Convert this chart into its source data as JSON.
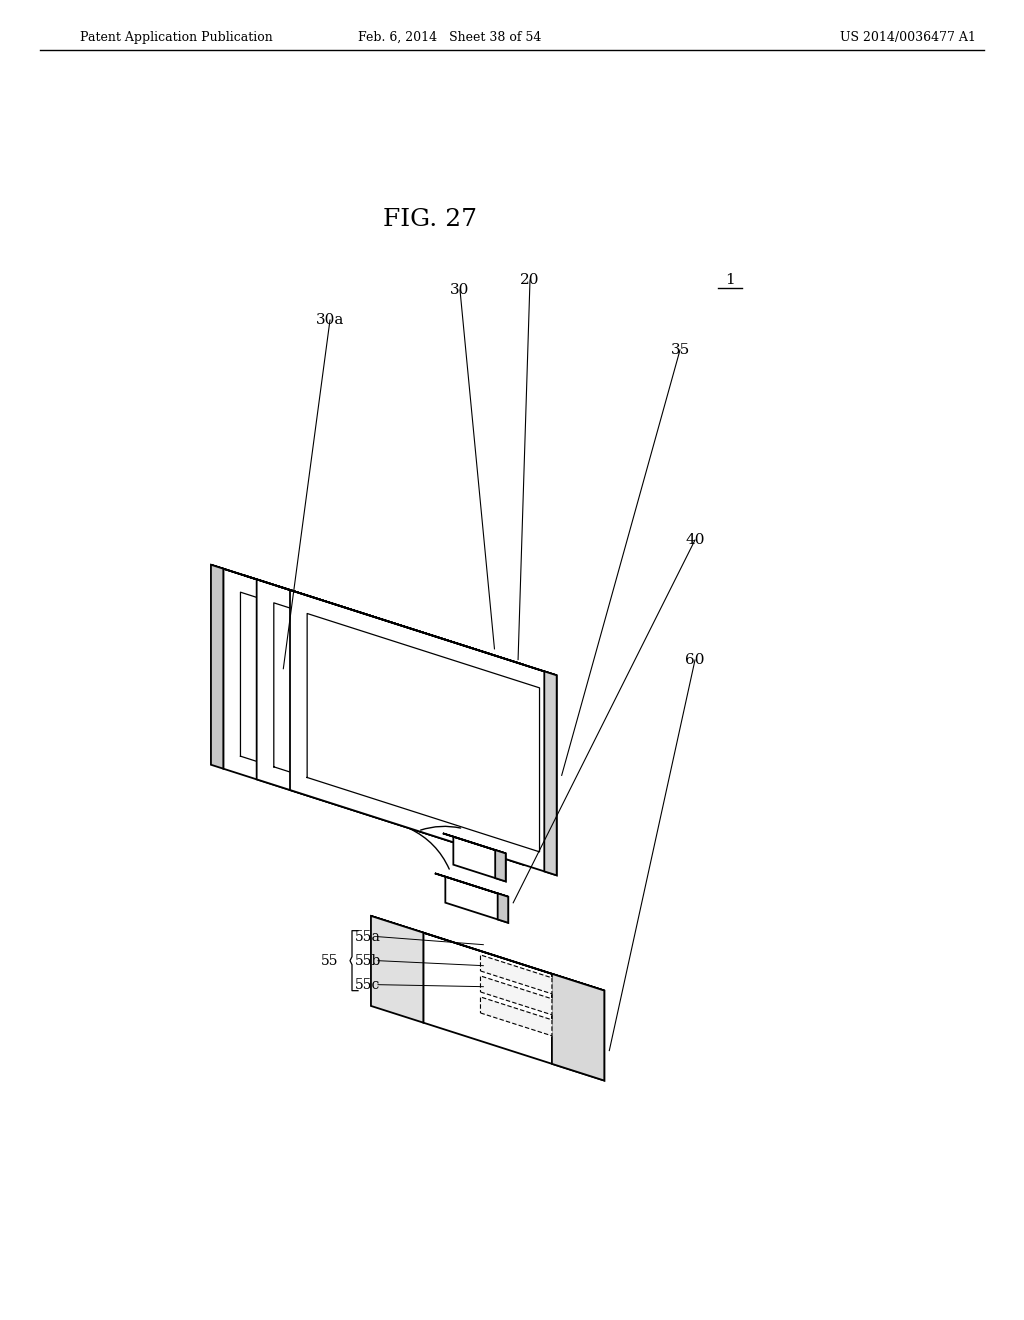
{
  "title": "FIG. 27",
  "header_left": "Patent Application Publication",
  "header_center": "Feb. 6, 2014   Sheet 38 of 54",
  "header_right": "US 2014/0036477 A1",
  "bg_color": "#ffffff",
  "line_color": "#000000",
  "fig_width": 10.24,
  "fig_height": 13.2,
  "label_fontsize": 11,
  "title_fontsize": 18,
  "header_fontsize": 9
}
